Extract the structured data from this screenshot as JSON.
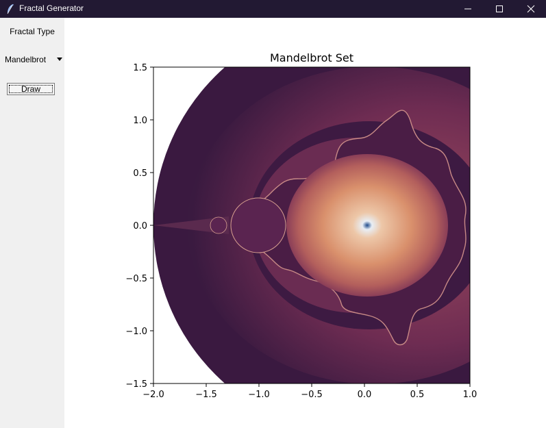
{
  "window": {
    "title": "Fractal Generator",
    "icons": {
      "app": "feather-icon",
      "minimize": "minimize-icon",
      "maximize": "maximize-icon",
      "close": "close-icon"
    }
  },
  "sidebar": {
    "fractal_type_label": "Fractal Type",
    "dropdown": {
      "selected": "Mandelbrot"
    },
    "draw_label": "Draw"
  },
  "chart_data": {
    "type": "heatmap",
    "title": "Mandelbrot Set",
    "xlabel": "",
    "ylabel": "",
    "xlim": [
      -2.0,
      1.0
    ],
    "ylim": [
      -1.5,
      1.5
    ],
    "x_ticks": [
      "−2.0",
      "−1.5",
      "−1.0",
      "−0.5",
      "0.0",
      "0.5",
      "1.0"
    ],
    "y_ticks": [
      "1.5",
      "1.0",
      "0.5",
      "0.0",
      "−0.5",
      "−1.0",
      "−1.5"
    ],
    "x_tick_values": [
      -2.0,
      -1.5,
      -1.0,
      -0.5,
      0.0,
      0.5,
      1.0
    ],
    "y_tick_values": [
      1.5,
      1.0,
      0.5,
      0.0,
      -0.5,
      -1.0,
      -1.5
    ],
    "grid": false,
    "colormap": "twilight_shifted",
    "colors": {
      "outside": "#ffffff",
      "dark": "#2f1638",
      "mid": "#7a3a5a",
      "light": "#e8b48c",
      "center": "#1d4a8a"
    }
  }
}
